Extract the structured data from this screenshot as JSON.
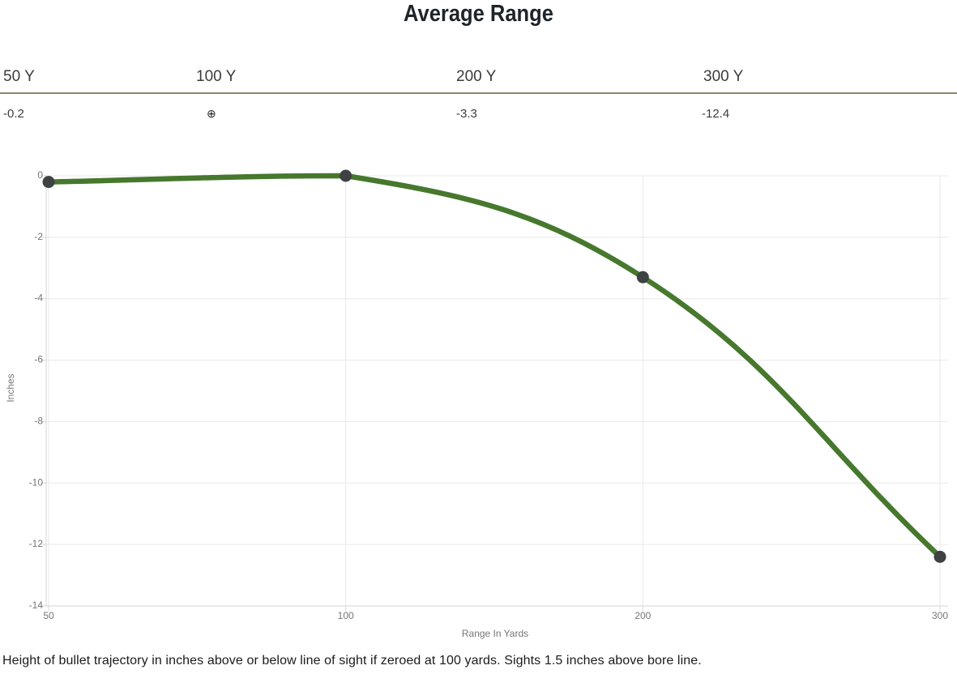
{
  "title": "Average Range",
  "range_table": {
    "columns": [
      {
        "label": "50 Y",
        "value": "-0.2"
      },
      {
        "label": "100 Y",
        "value": "⊕"
      },
      {
        "label": "200 Y",
        "value": "-3.3"
      },
      {
        "label": "300 Y",
        "value": "-12.4"
      }
    ]
  },
  "chart_data": {
    "type": "line",
    "title": "Average Range",
    "x": [
      50,
      100,
      200,
      300
    ],
    "x_tick_labels": [
      "50",
      "100",
      "200",
      "300"
    ],
    "x_axis_type": "categorical-equidistant",
    "series": [
      {
        "name": "Height of bullet trajectory",
        "values": [
          -0.2,
          0,
          -3.3,
          -12.4
        ]
      }
    ],
    "xlabel": "Range In Yards",
    "ylabel": "Inches",
    "ylim": [
      -14,
      0
    ],
    "y_ticks": [
      0,
      -2,
      -4,
      -6,
      -8,
      -10,
      -12,
      -14
    ],
    "grid": true,
    "legend": "none",
    "zero_point_yards": 100,
    "line_color": "#46782d",
    "point_color": "#3e4242",
    "grid_color": "#e9e9e9",
    "axis_color": "#d6d6d6",
    "tick_label_color": "#767676"
  },
  "colors": {
    "separator": "#8a8666",
    "accent_green": "#46782d",
    "title_text": "#1e242a"
  },
  "footnote": "Height of bullet trajectory in inches above or below line of sight if zeroed at 100 yards. Sights 1.5 inches above bore line."
}
